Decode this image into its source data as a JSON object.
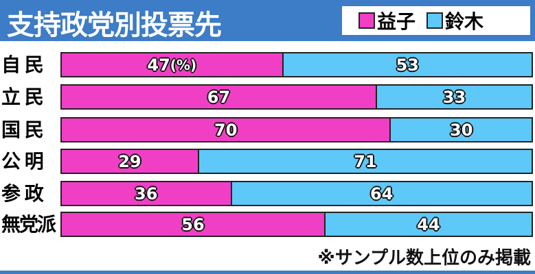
{
  "chart_data": {
    "type": "bar",
    "stacked": true,
    "orientation": "horizontal",
    "title": "支持政党別投票先",
    "unit": "(%)",
    "categories": [
      "自 民",
      "立 民",
      "国 民",
      "公 明",
      "参 政",
      "無党派"
    ],
    "series": [
      {
        "name": "益子",
        "color": "#f03fc4",
        "values": [
          47,
          67,
          70,
          29,
          36,
          56
        ]
      },
      {
        "name": "鈴木",
        "color": "#5ec8f8",
        "values": [
          53,
          33,
          30,
          71,
          64,
          44
        ]
      }
    ],
    "xlim": [
      0,
      100
    ],
    "legend": "top-right",
    "note": "※サンプル数上位のみ掲載"
  }
}
